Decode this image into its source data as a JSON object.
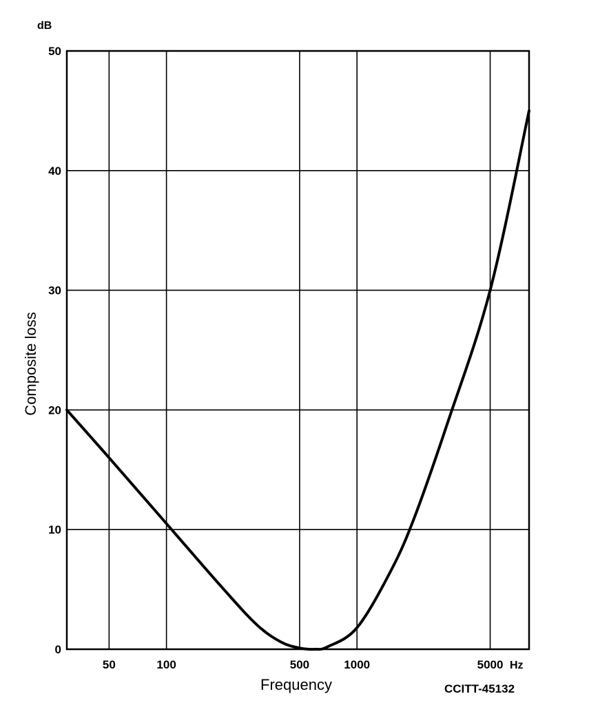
{
  "chart_data": {
    "type": "line",
    "xscale": "log",
    "xlabel": "Frequency",
    "ylabel": "Composite loss",
    "x_unit": "Hz",
    "y_unit": "dB",
    "xlim": [
      30,
      8000
    ],
    "ylim": [
      0,
      50
    ],
    "x_ticks": [
      {
        "value": 50,
        "label": "50"
      },
      {
        "value": 100,
        "label": "100"
      },
      {
        "value": 500,
        "label": "500"
      },
      {
        "value": 1000,
        "label": "1000"
      },
      {
        "value": 5000,
        "label": "5000"
      }
    ],
    "x_gridlines": [
      50,
      100,
      500,
      1000,
      5000
    ],
    "y_ticks": [
      {
        "value": 0,
        "label": "0"
      },
      {
        "value": 10,
        "label": "10"
      },
      {
        "value": 20,
        "label": "20"
      },
      {
        "value": 30,
        "label": "30"
      },
      {
        "value": 40,
        "label": "40"
      },
      {
        "value": 50,
        "label": "50"
      }
    ],
    "grid": true,
    "annotation": "CCITT-45132",
    "series": [
      {
        "points": [
          [
            30,
            20.0
          ],
          [
            50,
            16.0
          ],
          [
            100,
            10.5
          ],
          [
            200,
            5.0
          ],
          [
            300,
            2.0
          ],
          [
            400,
            0.6
          ],
          [
            500,
            0.1
          ],
          [
            600,
            0.0
          ],
          [
            700,
            0.2
          ],
          [
            1000,
            1.8
          ],
          [
            1500,
            6.5
          ],
          [
            2000,
            11.0
          ],
          [
            3000,
            19.0
          ],
          [
            5000,
            30.0
          ],
          [
            8000,
            45.0
          ]
        ]
      }
    ]
  }
}
